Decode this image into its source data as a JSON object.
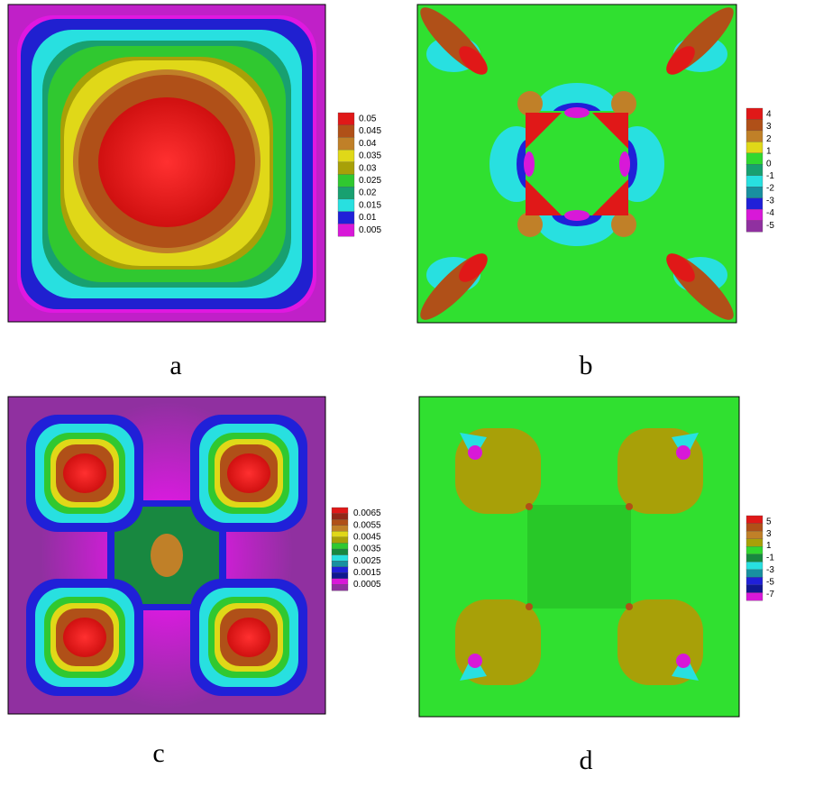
{
  "panels": [
    {
      "label": "a",
      "legend": {
        "labels": [
          0.05,
          0.045,
          0.04,
          0.035,
          0.03,
          0.025,
          0.02,
          0.015,
          0.01,
          0.005
        ],
        "colors": [
          "#e01818",
          "#b05018",
          "#c08028",
          "#e0d818",
          "#a8a008",
          "#30c830",
          "#18a070",
          "#28e0e0",
          "#2020d8",
          "#d818d8"
        ]
      }
    },
    {
      "label": "b",
      "legend": {
        "labels": [
          4,
          3,
          2,
          1,
          0,
          -1,
          -2,
          -3,
          -4,
          -5
        ],
        "colors": [
          "#e01818",
          "#b05018",
          "#c08028",
          "#e0d818",
          "#30d830",
          "#18a070",
          "#28e0e0",
          "#1890a0",
          "#2020d8",
          "#d818d8",
          "#9030a0"
        ]
      }
    },
    {
      "label": "c",
      "legend": {
        "labels": [
          0.0065,
          0.0055,
          0.0045,
          0.0035,
          0.0025,
          0.0015,
          0.0005
        ],
        "colors": [
          "#e01818",
          "#902818",
          "#b05018",
          "#c08028",
          "#e0d818",
          "#a8a008",
          "#30c830",
          "#188840",
          "#28e0e0",
          "#1890a0",
          "#2020d8",
          "#101890",
          "#d818d8",
          "#9030a0"
        ]
      }
    },
    {
      "label": "d",
      "legend": {
        "labels": [
          5,
          3,
          1,
          -1,
          -3,
          -5,
          -7
        ],
        "colors": [
          "#e01818",
          "#b05018",
          "#c08028",
          "#a8a008",
          "#30d830",
          "#188840",
          "#28e0e0",
          "#1890a0",
          "#2020d8",
          "#101890",
          "#d818d8"
        ]
      }
    }
  ]
}
